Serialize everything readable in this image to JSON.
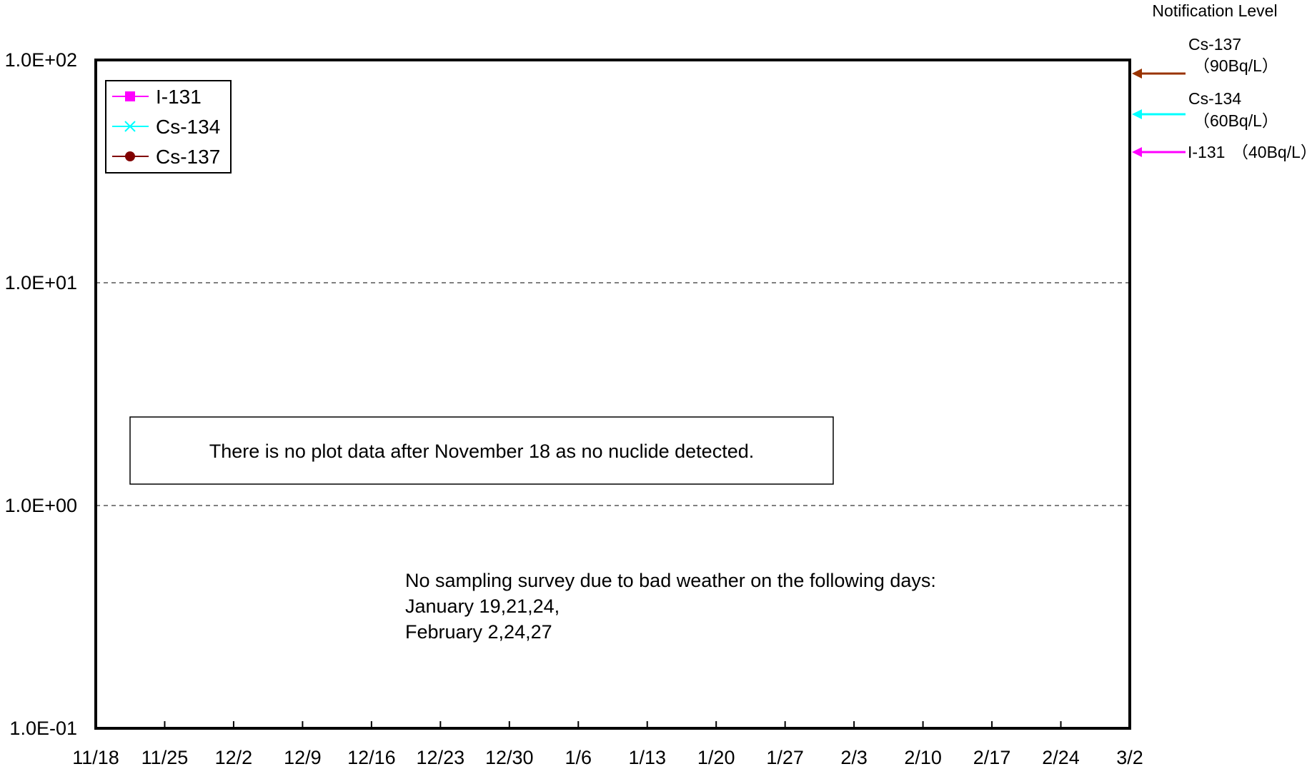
{
  "chart_data": {
    "type": "line",
    "title": "",
    "xlabel": "",
    "ylabel": "",
    "y_scale": "log",
    "ylim": [
      0.1,
      100
    ],
    "y_ticks": [
      "1.0E-01",
      "1.0E+00",
      "1.0E+01",
      "1.0E+02"
    ],
    "y_tick_values": [
      0.1,
      1,
      10,
      100
    ],
    "x_ticks": [
      "11/18",
      "11/25",
      "12/2",
      "12/9",
      "12/16",
      "12/23",
      "12/30",
      "1/6",
      "1/13",
      "1/20",
      "1/27",
      "2/3",
      "2/10",
      "2/17",
      "2/24",
      "3/2"
    ],
    "grid": "horizontal dashed",
    "legend_position": "top-left",
    "series": [
      {
        "name": "I-131",
        "color": "#ff00ff",
        "marker": "square",
        "values": []
      },
      {
        "name": "Cs-134",
        "color": "#00ffff",
        "marker": "x",
        "values": []
      },
      {
        "name": "Cs-137",
        "color": "#800000",
        "marker": "circle",
        "values": []
      }
    ],
    "notification": {
      "title": "Notification Level",
      "levels": [
        {
          "nuclide": "Cs-137",
          "text": "（90Bq/L）",
          "value": 90,
          "color": "#993300"
        },
        {
          "nuclide": "Cs-134",
          "text": "（60Bq/L）",
          "value": 60,
          "color": "#00ffff"
        },
        {
          "nuclide": "I-131",
          "text": "（40Bq/L）",
          "value": 40,
          "color": "#ff00ff"
        }
      ]
    },
    "annotations": {
      "no_data_box": "There is no plot data after November 18 as no nuclide detected.",
      "weather_note": [
        "No sampling survey due to bad weather on the following days:",
        "January 19,21,24,",
        "February 2,24,27"
      ]
    }
  }
}
